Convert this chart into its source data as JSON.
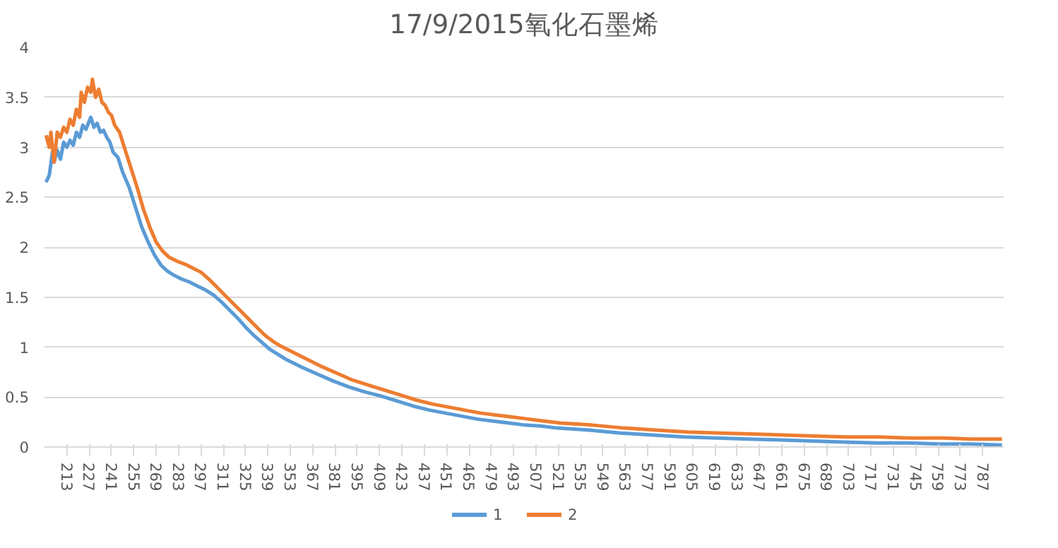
{
  "chart_data": {
    "type": "line",
    "title": "17/9/2015氧化石墨烯",
    "xlim": [
      199,
      800
    ],
    "ylim": [
      0,
      4
    ],
    "xticks": [
      213,
      227,
      241,
      255,
      269,
      283,
      297,
      311,
      325,
      339,
      353,
      367,
      381,
      395,
      409,
      423,
      437,
      451,
      465,
      479,
      493,
      507,
      521,
      535,
      549,
      563,
      577,
      591,
      605,
      619,
      633,
      647,
      661,
      675,
      689,
      703,
      717,
      731,
      745,
      759,
      773,
      787
    ],
    "yticks": [
      0,
      0.5,
      1,
      1.5,
      2,
      2.5,
      3,
      3.5,
      4
    ],
    "grid": "y",
    "legend": "bottom",
    "series": [
      {
        "name": "1",
        "color": "#5b9bd5",
        "x": [
          200,
          202,
          204,
          205,
          207,
          209,
          211,
          213,
          215,
          217,
          219,
          221,
          223,
          225,
          228,
          230,
          232,
          234,
          236,
          238,
          240,
          242,
          245,
          248,
          252,
          256,
          260,
          264,
          268,
          272,
          276,
          280,
          285,
          290,
          295,
          300,
          305,
          310,
          315,
          320,
          325,
          330,
          335,
          340,
          345,
          350,
          360,
          370,
          380,
          390,
          400,
          410,
          420,
          430,
          440,
          450,
          460,
          470,
          480,
          490,
          500,
          510,
          520,
          540,
          560,
          580,
          600,
          620,
          640,
          660,
          680,
          700,
          720,
          740,
          760,
          780,
          799
        ],
        "values": [
          2.65,
          2.72,
          2.95,
          2.85,
          2.97,
          2.88,
          3.05,
          3.0,
          3.07,
          3.02,
          3.15,
          3.1,
          3.22,
          3.18,
          3.3,
          3.2,
          3.24,
          3.15,
          3.17,
          3.1,
          3.05,
          2.95,
          2.9,
          2.75,
          2.6,
          2.4,
          2.2,
          2.05,
          1.92,
          1.82,
          1.76,
          1.72,
          1.68,
          1.65,
          1.61,
          1.57,
          1.52,
          1.45,
          1.37,
          1.29,
          1.2,
          1.12,
          1.05,
          0.98,
          0.93,
          0.88,
          0.8,
          0.73,
          0.66,
          0.6,
          0.55,
          0.51,
          0.46,
          0.41,
          0.37,
          0.34,
          0.31,
          0.28,
          0.26,
          0.24,
          0.22,
          0.21,
          0.19,
          0.17,
          0.14,
          0.12,
          0.1,
          0.09,
          0.08,
          0.07,
          0.06,
          0.05,
          0.04,
          0.04,
          0.03,
          0.03,
          0.02
        ]
      },
      {
        "name": "2",
        "color": "#ed7d31",
        "x": [
          200,
          202,
          203,
          205,
          207,
          209,
          211,
          213,
          215,
          217,
          219,
          221,
          222,
          224,
          226,
          228,
          229,
          231,
          233,
          235,
          237,
          239,
          241,
          243,
          246,
          249,
          253,
          257,
          261,
          265,
          269,
          273,
          277,
          282,
          287,
          292,
          297,
          302,
          307,
          312,
          317,
          322,
          327,
          332,
          337,
          342,
          347,
          352,
          362,
          372,
          382,
          392,
          402,
          412,
          422,
          432,
          442,
          452,
          462,
          472,
          482,
          492,
          502,
          512,
          522,
          542,
          562,
          582,
          602,
          622,
          642,
          662,
          682,
          702,
          722,
          742,
          762,
          780,
          799
        ],
        "values": [
          3.12,
          3.0,
          3.15,
          2.85,
          3.15,
          3.1,
          3.2,
          3.15,
          3.28,
          3.22,
          3.38,
          3.3,
          3.55,
          3.45,
          3.6,
          3.55,
          3.68,
          3.5,
          3.58,
          3.45,
          3.42,
          3.35,
          3.32,
          3.22,
          3.15,
          3.0,
          2.8,
          2.6,
          2.38,
          2.2,
          2.05,
          1.96,
          1.9,
          1.86,
          1.83,
          1.79,
          1.75,
          1.68,
          1.6,
          1.52,
          1.44,
          1.36,
          1.28,
          1.2,
          1.12,
          1.06,
          1.01,
          0.97,
          0.89,
          0.81,
          0.74,
          0.67,
          0.62,
          0.57,
          0.52,
          0.47,
          0.43,
          0.4,
          0.37,
          0.34,
          0.32,
          0.3,
          0.28,
          0.26,
          0.24,
          0.22,
          0.19,
          0.17,
          0.15,
          0.14,
          0.13,
          0.12,
          0.11,
          0.1,
          0.1,
          0.09,
          0.09,
          0.08,
          0.08
        ]
      }
    ]
  }
}
